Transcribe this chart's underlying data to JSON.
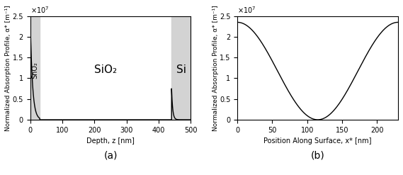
{
  "fig_width": 5.69,
  "fig_height": 2.47,
  "dpi": 100,
  "plot_a": {
    "xlim": [
      0,
      500
    ],
    "ylim": [
      0,
      25000000.0
    ],
    "xlabel": "Depth, z [nm]",
    "ylabel": "Normalized Absorption Profile, α* [m⁻¹]",
    "yticks": [
      0,
      5000000,
      10000000,
      15000000,
      20000000,
      25000000
    ],
    "ytick_labels": [
      "0",
      "0.5",
      "1",
      "1.5",
      "2",
      "2.5"
    ],
    "xticks": [
      0,
      100,
      200,
      300,
      400,
      500
    ],
    "sno2_end": 30,
    "sio2_start": 30,
    "sio2_end": 440,
    "si_start": 440,
    "si_end": 500,
    "label_sno2": "SnO₂",
    "label_sio2": "SiO₂",
    "label_si": "Si",
    "bg_color_sno2": "#d3d3d3",
    "bg_color_si": "#d3d3d3",
    "bg_color_sio2": "#ffffff",
    "sno2_peak": 25000000,
    "sno2_decay": 7.0,
    "si_peak": 7500000,
    "si_decay": 3.5,
    "caption": "(a)"
  },
  "plot_b": {
    "xlim": [
      0,
      230
    ],
    "ylim": [
      0,
      25000000.0
    ],
    "xlabel": "Position Along Surface, x* [nm]",
    "ylabel": "Normalized Absorption Profile, α* [m⁻¹]",
    "yticks": [
      0,
      5000000,
      10000000,
      15000000,
      20000000,
      25000000
    ],
    "ytick_labels": [
      "0",
      "0.5",
      "1",
      "1.5",
      "2",
      "2.5"
    ],
    "xticks": [
      0,
      50,
      100,
      150,
      200
    ],
    "period": 230,
    "amplitude": 23500000,
    "caption": "(b)"
  }
}
